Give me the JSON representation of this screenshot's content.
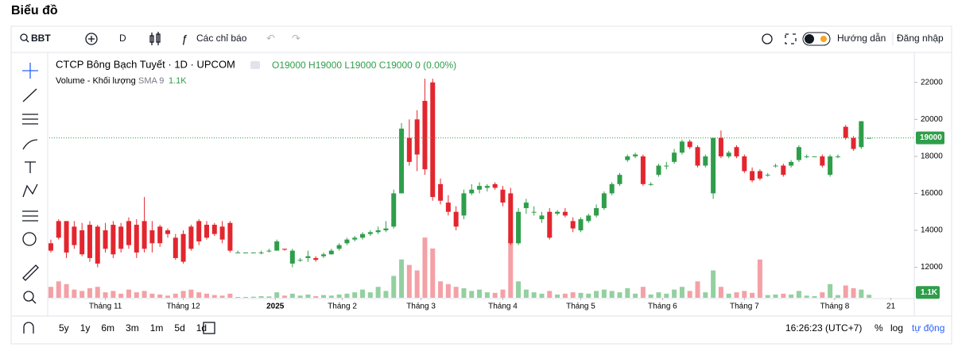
{
  "page_title": "Biểu đồ",
  "toolbar": {
    "symbol": "BBT",
    "interval": "D",
    "indicators": "Các chỉ báo",
    "guide": "Hướng dẫn",
    "login": "Đăng nhập"
  },
  "footer": {
    "ranges": [
      "5y",
      "1y",
      "6m",
      "3m",
      "1m",
      "5d",
      "1d"
    ],
    "time": "16:26:23 (UTC+7)",
    "percent": "%",
    "log": "log",
    "auto": "tự động"
  },
  "chart_data": {
    "type": "candlestick",
    "title": "CTCP Bông Bạch Tuyết · 1D · UPCOM",
    "ohlc_legend": "O19000 H19000 L19000 C19000 0 (0.00%)",
    "volume_title": "Volume - Khối lượng",
    "volume_sma": "SMA 9",
    "last_volume_label": "1.1K",
    "up_color": "#2f9e4a",
    "down_color": "#e3262e",
    "volume_up_color": "#93d0a0",
    "volume_down_color": "#f3a1a6",
    "grid": false,
    "ylim": [
      10350,
      23450
    ],
    "yticks": [
      12000,
      14000,
      16000,
      18000,
      20000,
      22000
    ],
    "xlim": [
      -0.2,
      110.8
    ],
    "xticks": [
      {
        "value": 7,
        "label": "Tháng 11"
      },
      {
        "value": 17,
        "label": "Tháng 12"
      },
      {
        "value": 28.8,
        "label": "2025"
      },
      {
        "value": 37.4,
        "label": "Tháng 2"
      },
      {
        "value": 47.5,
        "label": "Tháng 3"
      },
      {
        "value": 58,
        "label": "Tháng 4"
      },
      {
        "value": 68,
        "label": "Tháng 5"
      },
      {
        "value": 78.5,
        "label": "Tháng 6"
      },
      {
        "value": 89,
        "label": "Tháng 7"
      },
      {
        "value": 100.6,
        "label": "Tháng 8"
      },
      {
        "value": 107.8,
        "label": "21"
      }
    ],
    "volume_lim": [
      0,
      29000
    ],
    "open": [
      13300,
      14500,
      14500,
      14200,
      14000,
      14300,
      14200,
      14000,
      14300,
      14200,
      14500,
      14300,
      14500,
      14000,
      14200,
      14000,
      13600,
      13800,
      14200,
      14500,
      14300,
      14300,
      14200,
      14400,
      12800,
      12800,
      12800,
      12800,
      12900,
      12900,
      13000,
      12200,
      12400,
      12500,
      12500,
      12600,
      12700,
      13000,
      13300,
      13500,
      13600,
      13800,
      13900,
      14000,
      14200,
      16000,
      19000,
      20000,
      21000,
      22000,
      16500,
      15500,
      15000,
      14800,
      16000,
      16200,
      16300,
      16500,
      16200,
      16000,
      13300,
      15200,
      15000,
      14600,
      15000,
      14900,
      15000,
      14500,
      14000,
      14500,
      14800,
      15200,
      16000,
      16500,
      17800,
      18000,
      18000,
      16500,
      17000,
      17500,
      17700,
      18200,
      18800,
      18500,
      17500,
      16000,
      19000,
      18000,
      18500,
      18000,
      17200,
      17200,
      17000,
      17500,
      17500,
      17500,
      17800,
      18000,
      18000,
      18000,
      17000,
      18000,
      19600,
      19000,
      18500,
      19000
    ],
    "high": [
      13500,
      14600,
      14500,
      14500,
      14400,
      14500,
      14300,
      14400,
      14500,
      14400,
      14700,
      14600,
      15800,
      14500,
      14300,
      14100,
      13800,
      14000,
      14300,
      14600,
      14500,
      14400,
      14500,
      14500,
      12900,
      12800,
      12800,
      12900,
      13000,
      13500,
      13000,
      13000,
      12500,
      12900,
      12600,
      12800,
      13000,
      13300,
      13600,
      13700,
      13900,
      14000,
      14200,
      14500,
      16200,
      19800,
      20000,
      20500,
      22200,
      22200,
      16800,
      15900,
      15300,
      16200,
      16500,
      16600,
      16500,
      16600,
      16400,
      16300,
      15200,
      15700,
      15300,
      15000,
      15200,
      15100,
      15200,
      14700,
      14700,
      14900,
      15400,
      16100,
      16600,
      17100,
      18100,
      18200,
      18100,
      16600,
      17600,
      17700,
      18400,
      18900,
      18900,
      18600,
      18100,
      19000,
      19400,
      18300,
      18600,
      18100,
      17400,
      17300,
      17100,
      17600,
      17600,
      17800,
      18600,
      18100,
      18000,
      18100,
      18100,
      18100,
      19700,
      19100,
      19900,
      19000
    ],
    "low": [
      12800,
      13500,
      12500,
      13000,
      12600,
      12300,
      12000,
      12800,
      12500,
      12800,
      13000,
      12500,
      12800,
      12800,
      13100,
      13600,
      12400,
      12200,
      12900,
      13200,
      13500,
      13700,
      13300,
      12800,
      12800,
      12800,
      12800,
      12700,
      12800,
      12900,
      12900,
      12000,
      12300,
      12300,
      12300,
      12500,
      12700,
      12900,
      13200,
      13400,
      13500,
      13700,
      13800,
      13900,
      14100,
      16000,
      17500,
      17200,
      17000,
      15600,
      15400,
      14800,
      14000,
      14600,
      15900,
      16000,
      16100,
      16200,
      15300,
      13200,
      13200,
      14900,
      14800,
      14400,
      13500,
      14800,
      14700,
      13900,
      13900,
      14400,
      14700,
      15100,
      15900,
      16400,
      17700,
      17900,
      16400,
      16400,
      16900,
      17300,
      17600,
      18100,
      18400,
      17400,
      17400,
      15700,
      17900,
      17900,
      17900,
      17100,
      16600,
      16700,
      16900,
      17400,
      16900,
      17400,
      17700,
      17900,
      18000,
      17400,
      16900,
      17900,
      18900,
      18300,
      18400,
      19000
    ],
    "close": [
      12900,
      13600,
      12800,
      13200,
      12700,
      12500,
      12200,
      13000,
      12700,
      13000,
      13200,
      12800,
      13000,
      13300,
      13300,
      13800,
      12500,
      12300,
      13000,
      13400,
      13600,
      13800,
      13500,
      12900,
      12800,
      12800,
      12800,
      12800,
      12900,
      13400,
      12950,
      12900,
      12400,
      12600,
      12400,
      12700,
      12900,
      13200,
      13500,
      13600,
      13800,
      13900,
      14000,
      14100,
      16000,
      19500,
      17700,
      18100,
      17300,
      15800,
      15600,
      15000,
      14200,
      16000,
      16200,
      16400,
      16400,
      16300,
      15500,
      13300,
      15000,
      15500,
      15000,
      14800,
      13600,
      15000,
      14800,
      14100,
      14600,
      14800,
      15200,
      16000,
      16500,
      17000,
      18000,
      18100,
      16500,
      16500,
      17500,
      17500,
      18200,
      18800,
      18500,
      17500,
      18000,
      19000,
      18000,
      18200,
      18000,
      17200,
      16700,
      16800,
      17000,
      17500,
      17000,
      17700,
      18500,
      18000,
      18000,
      17500,
      18000,
      18000,
      19000,
      18400,
      19900,
      19000
    ],
    "volume": [
      4000,
      6000,
      5000,
      3000,
      2500,
      3500,
      4000,
      2000,
      2500,
      1500,
      3000,
      2000,
      2500,
      1500,
      1200,
      800,
      1500,
      2500,
      3000,
      2000,
      1500,
      1000,
      800,
      1500,
      300,
      300,
      400,
      600,
      500,
      2000,
      800,
      1500,
      800,
      1200,
      600,
      1000,
      800,
      1200,
      1500,
      2000,
      3000,
      2000,
      4000,
      2500,
      8000,
      14000,
      12000,
      10000,
      22000,
      18000,
      6000,
      5000,
      4000,
      3500,
      2500,
      3000,
      2000,
      1800,
      3000,
      22000,
      6000,
      3000,
      2000,
      1500,
      2500,
      1200,
      1500,
      2000,
      1800,
      1500,
      2500,
      3000,
      2500,
      2000,
      3500,
      1500,
      4000,
      1200,
      2000,
      1500,
      3000,
      4000,
      2500,
      6000,
      2000,
      10000,
      4000,
      1500,
      2000,
      2500,
      1800,
      14000,
      1000,
      1200,
      1500,
      1200,
      2500,
      800,
      600,
      2000,
      5000,
      1000,
      4500,
      3500,
      3000,
      1100
    ]
  }
}
